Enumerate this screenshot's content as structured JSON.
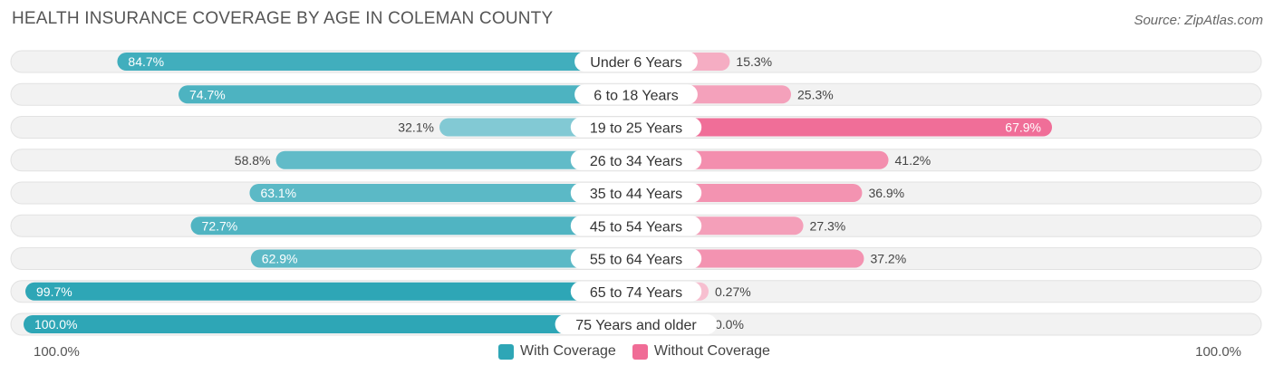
{
  "title": "HEALTH INSURANCE COVERAGE BY AGE IN COLEMAN COUNTY",
  "source": "Source: ZipAtlas.com",
  "axis": {
    "left_label": "100.0%",
    "right_label": "100.0%"
  },
  "legend": [
    {
      "label": "With Coverage",
      "color": "#2ea6b6"
    },
    {
      "label": "Without Coverage",
      "color": "#f06c96"
    }
  ],
  "chart_data": {
    "type": "bar",
    "orientation": "horizontal-diverging",
    "title": "HEALTH INSURANCE COVERAGE BY AGE IN COLEMAN COUNTY",
    "categories": [
      "Under 6 Years",
      "6 to 18 Years",
      "19 to 25 Years",
      "26 to 34 Years",
      "35 to 44 Years",
      "45 to 54 Years",
      "55 to 64 Years",
      "65 to 74 Years",
      "75 Years and older"
    ],
    "series": [
      {
        "name": "With Coverage",
        "values": [
          84.7,
          74.7,
          32.1,
          58.8,
          63.1,
          72.7,
          62.9,
          99.7,
          100.0
        ],
        "labels": [
          "84.7%",
          "74.7%",
          "32.1%",
          "58.8%",
          "63.1%",
          "72.7%",
          "62.9%",
          "99.7%",
          "100.0%"
        ]
      },
      {
        "name": "Without Coverage",
        "values": [
          15.3,
          25.3,
          67.9,
          41.2,
          36.9,
          27.3,
          37.2,
          0.27,
          0.0
        ],
        "labels": [
          "15.3%",
          "25.3%",
          "67.9%",
          "41.2%",
          "36.9%",
          "27.3%",
          "37.2%",
          "0.27%",
          "0.0%"
        ]
      }
    ],
    "xlim": [
      0,
      100
    ]
  }
}
